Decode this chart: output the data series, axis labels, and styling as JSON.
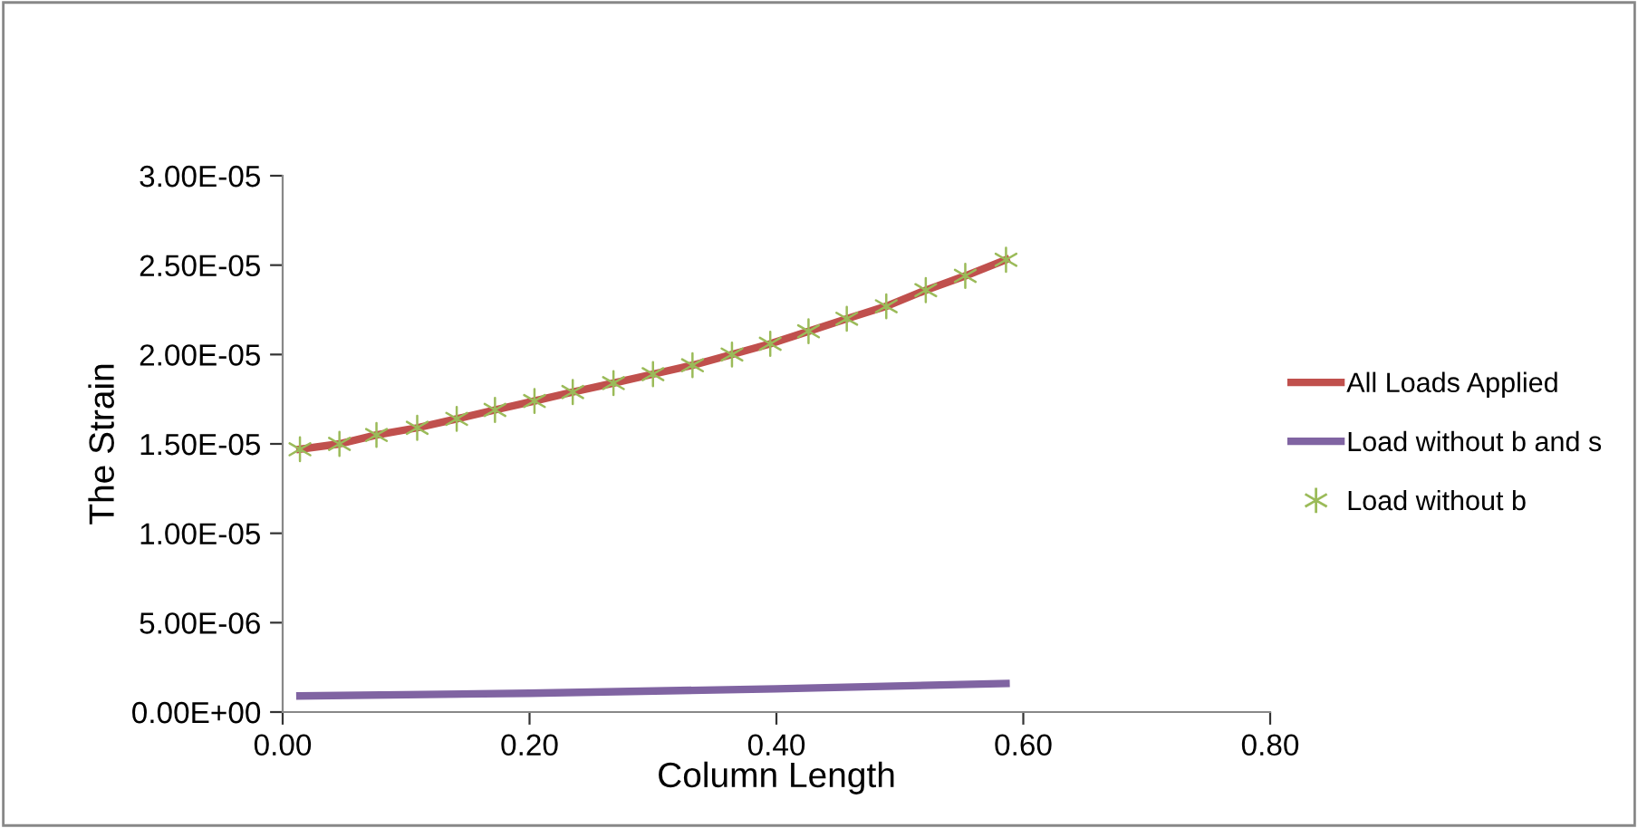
{
  "chart_data": {
    "type": "line",
    "xlabel": "Column Length",
    "ylabel": "The Strain",
    "xlim": [
      0,
      0.8
    ],
    "xticks": [
      {
        "value": 0,
        "label": "0.00"
      },
      {
        "value": 0.2,
        "label": "0.20"
      },
      {
        "value": 0.4,
        "label": "0.40"
      },
      {
        "value": 0.6,
        "label": "0.60"
      },
      {
        "value": 0.8,
        "label": "0.80"
      }
    ],
    "ylim": [
      0,
      3e-05
    ],
    "yticks": [
      {
        "value": 0,
        "label": "0.00E+00"
      },
      {
        "value": 5e-06,
        "label": "5.00E-06"
      },
      {
        "value": 1e-05,
        "label": "1.00E-05"
      },
      {
        "value": 1.5e-05,
        "label": "1.50E-05"
      },
      {
        "value": 2e-05,
        "label": "2.00E-05"
      },
      {
        "value": 2.5e-05,
        "label": "2.50E-05"
      },
      {
        "value": 3e-05,
        "label": "3.00E-05"
      }
    ],
    "grid": false,
    "legend": "right",
    "series": [
      {
        "name": "All Loads Applied",
        "color": "#c0504d",
        "x": [
          0.014,
          0.046,
          0.076,
          0.109,
          0.141,
          0.172,
          0.204,
          0.235,
          0.268,
          0.3,
          0.332,
          0.364,
          0.395,
          0.426,
          0.457,
          0.489,
          0.521,
          0.553,
          0.586
        ],
        "values": [
          1.47e-05,
          1.5e-05,
          1.55e-05,
          1.59e-05,
          1.64e-05,
          1.69e-05,
          1.74e-05,
          1.79e-05,
          1.84e-05,
          1.89e-05,
          1.94e-05,
          2e-05,
          2.06e-05,
          2.13e-05,
          2.2e-05,
          2.27e-05,
          2.36e-05,
          2.44e-05,
          2.53e-05
        ]
      },
      {
        "name": "Load without b and s",
        "color": "#8064a2",
        "x": [
          0.014,
          0.2,
          0.4,
          0.586
        ],
        "values": [
          9e-07,
          1.05e-06,
          1.3e-06,
          1.6e-06
        ]
      },
      {
        "name": "Load without b",
        "color": "#9bbb59",
        "type": "scatter",
        "marker": "cross",
        "x": [
          0.014,
          0.046,
          0.076,
          0.109,
          0.141,
          0.172,
          0.204,
          0.235,
          0.268,
          0.3,
          0.332,
          0.364,
          0.395,
          0.426,
          0.457,
          0.489,
          0.521,
          0.553,
          0.586
        ],
        "values": [
          1.47e-05,
          1.5e-05,
          1.55e-05,
          1.59e-05,
          1.64e-05,
          1.69e-05,
          1.74e-05,
          1.79e-05,
          1.84e-05,
          1.89e-05,
          1.94e-05,
          2e-05,
          2.06e-05,
          2.13e-05,
          2.2e-05,
          2.27e-05,
          2.36e-05,
          2.44e-05,
          2.53e-05
        ]
      }
    ]
  }
}
